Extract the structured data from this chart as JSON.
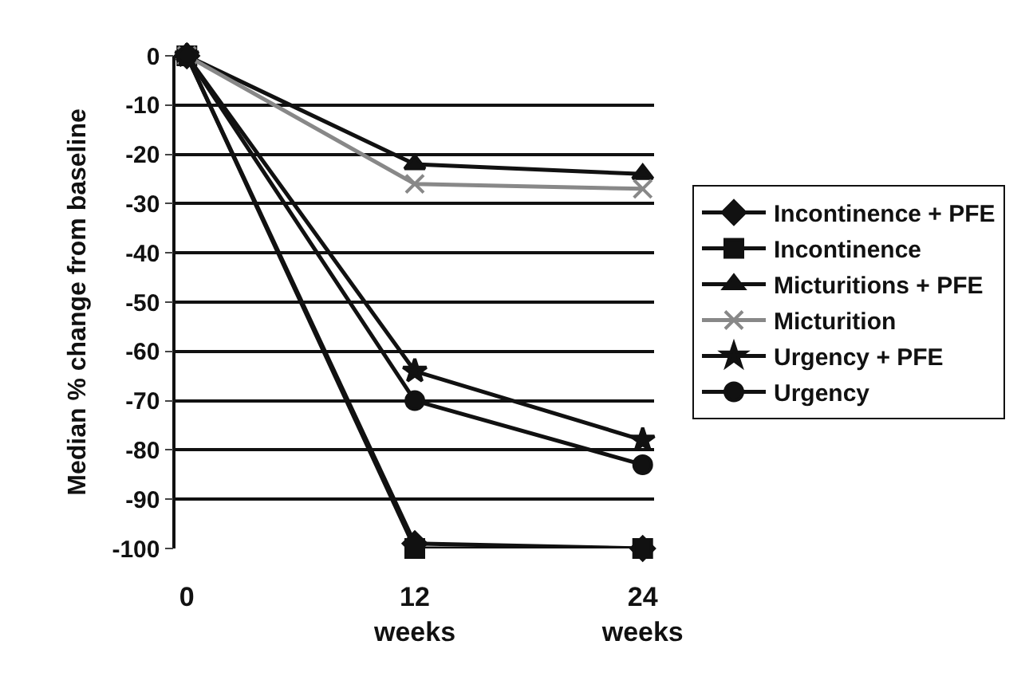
{
  "chart_data": {
    "type": "line",
    "ylabel": "Median % change from baseline",
    "categories": [
      "0",
      "12 weeks",
      "24 weeks"
    ],
    "ylim": [
      -100,
      0
    ],
    "yticks": [
      0,
      -10,
      -20,
      -30,
      -40,
      -50,
      -60,
      -70,
      -80,
      -90,
      -100
    ],
    "grid": "y",
    "legend": "right",
    "line_style": "solid",
    "series": [
      {
        "name": "Incontinence + PFE",
        "color": "#111111",
        "marker": "diamond",
        "values": [
          0,
          -99,
          -100
        ]
      },
      {
        "name": "Incontinence",
        "color": "#111111",
        "marker": "square",
        "values": [
          0,
          -100,
          -100
        ]
      },
      {
        "name": "Micturitions + PFE",
        "color": "#111111",
        "marker": "triangle",
        "values": [
          0,
          -22,
          -24
        ]
      },
      {
        "name": "Micturition",
        "color": "#888888",
        "marker": "cross",
        "values": [
          0,
          -26,
          -27
        ]
      },
      {
        "name": "Urgency + PFE",
        "color": "#111111",
        "marker": "star",
        "values": [
          0,
          -64,
          -78
        ]
      },
      {
        "name": "Urgency",
        "color": "#111111",
        "marker": "circle",
        "values": [
          0,
          -70,
          -83
        ]
      }
    ]
  }
}
